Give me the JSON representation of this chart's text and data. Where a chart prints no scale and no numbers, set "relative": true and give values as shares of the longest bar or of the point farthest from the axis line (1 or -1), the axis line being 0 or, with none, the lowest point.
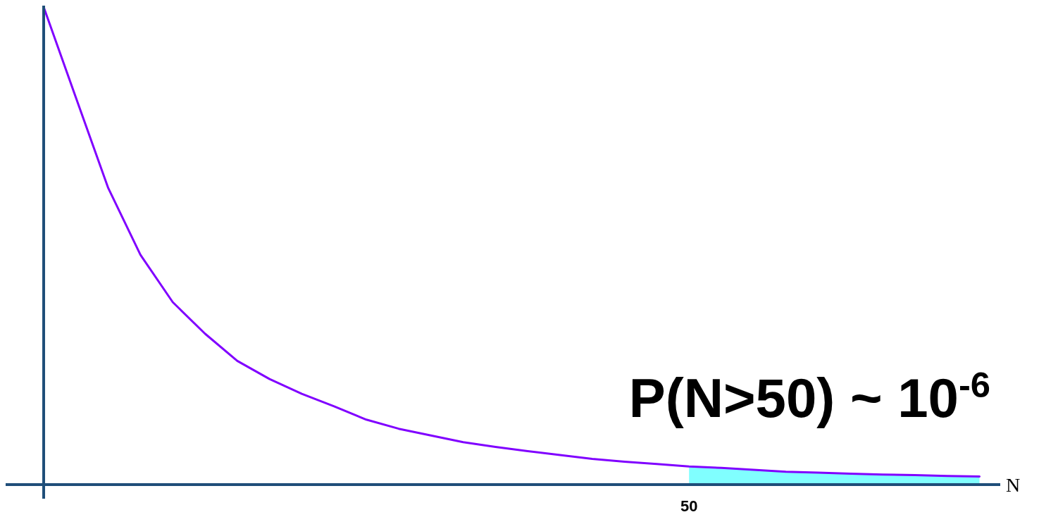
{
  "chart_data": {
    "type": "line",
    "relative": true,
    "xlabel": "N",
    "annotations": [
      "P(N>50) ~ 10$^{-6}$",
      "50"
    ],
    "categories": [
      null,
      null,
      null,
      null,
      null,
      null,
      null,
      null,
      null,
      null,
      null,
      null,
      null,
      null,
      null,
      null,
      null,
      null,
      null,
      null,
      null,
      null,
      null,
      null,
      null,
      null,
      null,
      null,
      null,
      null
    ],
    "series": [
      {
        "type": "area",
        "color": "#80ffff",
        "values": [
          null,
          null,
          null,
          null,
          null,
          null,
          null,
          null,
          null,
          null,
          null,
          null,
          null,
          null,
          null,
          null,
          null,
          null,
          null,
          null,
          0.038,
          0.035,
          0.031,
          0.027,
          0.025,
          0.023,
          0.021,
          0.02,
          0.018,
          0.017
        ]
      },
      {
        "color": "#8000ff",
        "values": [
          1,
          0.81,
          0.621,
          0.481,
          0.382,
          0.316,
          0.259,
          0.221,
          0.19,
          0.164,
          0.136,
          0.117,
          0.103,
          0.089,
          0.079,
          0.07,
          0.062,
          0.054,
          0.048,
          0.043,
          0.038,
          0.035,
          0.031,
          0.027,
          0.025,
          0.023,
          0.021,
          0.02,
          0.018,
          0.017
        ]
      }
    ]
  }
}
